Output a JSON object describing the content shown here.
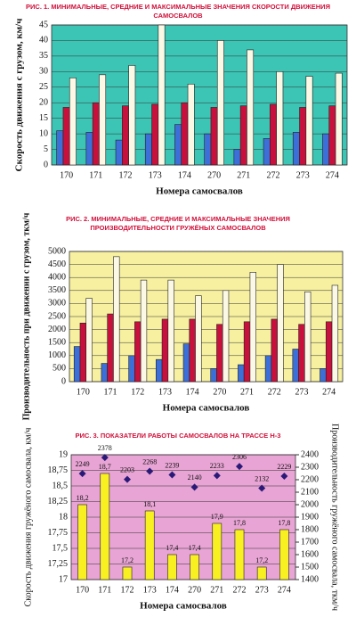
{
  "chart_data": [
    {
      "type": "bar",
      "title": "РИС. 1. МИНИМАЛЬНЫЕ, СРЕДНИЕ И МАКСИМАЛЬНЫЕ ЗНАЧЕНИЯ СКОРОСТИ ДВИЖЕНИЯ САМОСВАЛОВ",
      "y_label": "Скорость движения с грузом, км/ч",
      "x_label": "Номера самосвалов",
      "categories": [
        "170",
        "171",
        "172",
        "173",
        "174",
        "270",
        "271",
        "272",
        "273",
        "274"
      ],
      "series": [
        {
          "color": "#3d6fd8",
          "values": [
            11,
            10.5,
            8,
            10,
            13,
            10,
            5,
            8.5,
            10.5,
            10
          ]
        },
        {
          "color": "#c8103c",
          "values": [
            18.5,
            20,
            19,
            19.5,
            20,
            18.5,
            19,
            19.5,
            18.5,
            19
          ]
        },
        {
          "color": "#fbf8e6",
          "values": [
            28,
            29,
            32,
            45,
            26,
            40,
            37,
            30,
            28.5,
            29.5
          ]
        }
      ],
      "ylim": [
        0,
        45
      ],
      "yticks": [
        0,
        5,
        10,
        15,
        20,
        25,
        30,
        35,
        40,
        45
      ],
      "grid": true,
      "background": "#3cc4b4"
    },
    {
      "type": "bar",
      "title": "РИС. 2. МИНИМАЛЬНЫЕ, СРЕДНИЕ И МАКСИМАЛЬНЫЕ ЗНАЧЕНИЯ ПРОИЗВОДИТЕЛЬНОСТИ ГРУЖЁНЫХ САМОСВАЛОВ",
      "y_label": "Производительность при движении с грузом, ткм/ч",
      "x_label": "Номера самосвалов",
      "categories": [
        "170",
        "171",
        "172",
        "173",
        "174",
        "270",
        "271",
        "272",
        "273",
        "274"
      ],
      "series": [
        {
          "color": "#3d6fd8",
          "values": [
            1350,
            700,
            1000,
            850,
            1450,
            500,
            650,
            1000,
            1250,
            500
          ]
        },
        {
          "color": "#c8103c",
          "values": [
            2250,
            2600,
            2300,
            2400,
            2400,
            2200,
            2300,
            2400,
            2200,
            2300
          ]
        },
        {
          "color": "#fbf8e6",
          "values": [
            3200,
            4800,
            3900,
            3900,
            3300,
            3500,
            4200,
            4500,
            3450,
            3700
          ]
        }
      ],
      "ylim": [
        0,
        5000
      ],
      "yticks": [
        0,
        500,
        1000,
        1500,
        2000,
        2500,
        3000,
        3500,
        4000,
        4500,
        5000
      ],
      "grid": true,
      "background": "#f6f0a0"
    },
    {
      "type": "bar",
      "title": "РИС. 3. ПОКАЗАТЕЛИ РАБОТЫ САМОСВАЛОВ НА ТРАССЕ Н-3",
      "y_label": "Скорость движения гружёного самосвала, км/ч",
      "y2_label": "Производительность гружёного самосвала, ткм/ч",
      "x_label": "Номера самосвалов",
      "categories": [
        "170",
        "171",
        "172",
        "173",
        "174",
        "270",
        "271",
        "272",
        "273",
        "274"
      ],
      "series": [
        {
          "color": "#f8f020",
          "values": [
            18.2,
            18.7,
            17.2,
            18.1,
            17.4,
            17.4,
            17.9,
            17.8,
            17.2,
            17.8
          ],
          "value_labels": [
            "18,2",
            "18,7",
            "17,2",
            "18,1",
            "17,4",
            "17,4",
            "17,9",
            "17,8",
            "17,2",
            "17,8"
          ]
        },
        {
          "type": "scatter",
          "marker": "diamond",
          "axis": "y2",
          "color": "#2a1a78",
          "values": [
            2249,
            2378,
            2203,
            2268,
            2239,
            2140,
            2233,
            2306,
            2132,
            2229
          ]
        }
      ],
      "ylim": [
        17,
        19
      ],
      "yticks": [
        17,
        {
          "value": 17.25,
          "label": "17,25"
        },
        {
          "value": 17.5,
          "label": "17,5"
        },
        {
          "value": 17.75,
          "label": "17,75"
        },
        18,
        {
          "value": 18.25,
          "label": "18,25"
        },
        {
          "value": 18.5,
          "label": "18,5"
        },
        {
          "value": 18.75,
          "label": "18,75"
        },
        19
      ],
      "y2lim": [
        1400,
        2400
      ],
      "y2ticks": [
        1400,
        1500,
        1600,
        1700,
        1800,
        1900,
        2000,
        2100,
        2200,
        2300,
        2400
      ],
      "grid": true,
      "background": "#e8a4d4"
    }
  ]
}
